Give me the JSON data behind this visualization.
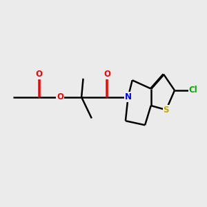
{
  "background_color": "#ebebeb",
  "bond_color": "#000000",
  "bond_width": 1.8,
  "atom_colors": {
    "O": "#ff0000",
    "N": "#0000ff",
    "S": "#bbaa00",
    "Cl": "#00aa00",
    "C": "#000000"
  },
  "font_size_atom": 8.5,
  "figsize": [
    3.0,
    3.0
  ],
  "dpi": 100
}
